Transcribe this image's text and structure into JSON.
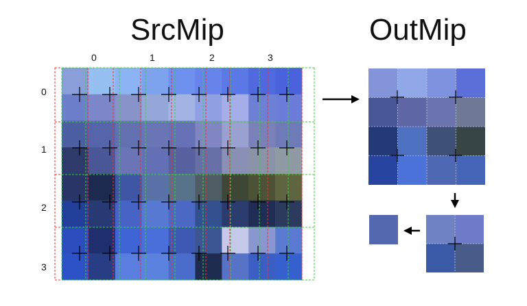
{
  "src_title": "SrcMip",
  "out_title": "OutMip",
  "col_labels": [
    "0",
    "1",
    "2",
    "3"
  ],
  "row_labels": [
    "0",
    "1",
    "2",
    "3"
  ],
  "src_colors": [
    [
      "#8a9fd9",
      "#96bff2",
      "#8cb4f5",
      "#7da3ef",
      "#6e90ee",
      "#6684ea",
      "#5a78e6",
      "#5069de",
      "#4a63dc"
    ],
    [
      "#6d7fca",
      "#7b87c9",
      "#8893c9",
      "#95a6d8",
      "#a3b3e4",
      "#8fa0e3",
      "#a6aeea",
      "#6e7fd6",
      "#6b7dd8"
    ],
    [
      "#4c5fa3",
      "#5664aa",
      "#6270b0",
      "#6a75b6",
      "#6672b5",
      "#7f86c1",
      "#9aa0cf",
      "#7a80b8",
      "#6e7bb8"
    ],
    [
      "#2e3b6a",
      "#4a5796",
      "#6a74b7",
      "#6470b6",
      "#58609f",
      "#6670a6",
      "#8a8fb5",
      "#8a94a8",
      "#8f9aa4"
    ],
    [
      "#283566",
      "#1d2a4f",
      "#3e56a3",
      "#5872a7",
      "#56738a",
      "#4e5d63",
      "#3e4736",
      "#4d5237",
      "#5e6540"
    ],
    [
      "#22409a",
      "#283a73",
      "#4763c5",
      "#5779d1",
      "#4b69c4",
      "#33508f",
      "#2a3b6e",
      "#1f2c54",
      "#2b3a5d"
    ],
    [
      "#2b4dbd",
      "#1f2f6e",
      "#3e64d6",
      "#4a6fdb",
      "#3d59b4",
      "#3c5694",
      "#c5c8e8",
      "#8a96cf",
      "#5a7ad1"
    ],
    [
      "#2d52c7",
      "#283e84",
      "#5a7ee0",
      "#5c82e0",
      "#4a6dcb",
      "#1e2c50",
      "#5773c8",
      "#3a5ec4",
      "#3560cd"
    ]
  ],
  "out_colors": [
    [
      "#8494d8",
      "#90a7e8",
      "#7d93e0",
      "#5c6fd8"
    ],
    [
      "#4a5797",
      "#6067a6",
      "#6c74b0",
      "#6f7894"
    ],
    [
      "#243a77",
      "#4d70c0",
      "#3f5076",
      "#384546"
    ],
    [
      "#2745a0",
      "#4a72d8",
      "#4f68b4",
      "#4565b8"
    ]
  ],
  "mid_colors": [
    [
      "#6f82c4",
      "#6f7bc8"
    ],
    [
      "#3a5aa8",
      "#485c8a"
    ]
  ],
  "final_color": "#5468b0",
  "grid_red": "#ff2a2a",
  "grid_green": "#33d633"
}
